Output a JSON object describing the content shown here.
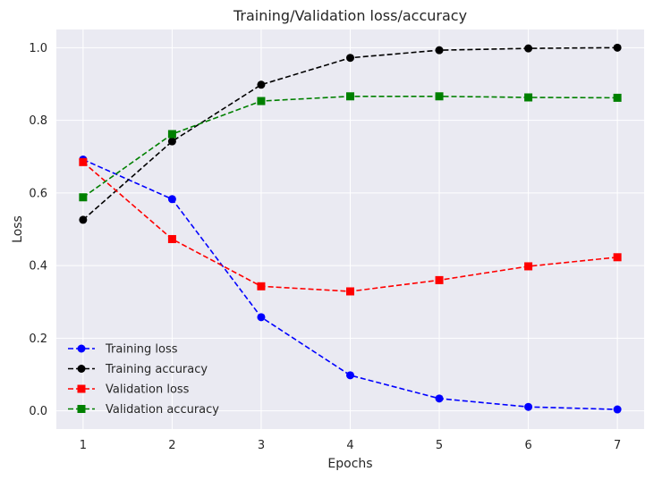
{
  "chart_data": {
    "type": "line",
    "title": "Training/Validation loss/accuracy",
    "xlabel": "Epochs",
    "ylabel": "Loss",
    "x": [
      1,
      2,
      3,
      4,
      5,
      6,
      7
    ],
    "xlim": [
      0.7,
      7.3
    ],
    "ylim": [
      -0.05,
      1.05
    ],
    "xticks": [
      "1",
      "2",
      "3",
      "4",
      "5",
      "6",
      "7"
    ],
    "yticks": [
      "0.0",
      "0.2",
      "0.4",
      "0.6",
      "0.8",
      "1.0"
    ],
    "grid": true,
    "legend_position": "lower-left",
    "series": [
      {
        "name": "Training loss",
        "color": "#0000ff",
        "marker": "circle",
        "values": [
          0.692,
          0.583,
          0.258,
          0.098,
          0.034,
          0.011,
          0.004
        ]
      },
      {
        "name": "Training accuracy",
        "color": "#000000",
        "marker": "circle",
        "values": [
          0.526,
          0.742,
          0.898,
          0.972,
          0.993,
          0.998,
          1.0
        ]
      },
      {
        "name": "Validation loss",
        "color": "#ff0000",
        "marker": "square",
        "values": [
          0.685,
          0.473,
          0.343,
          0.329,
          0.36,
          0.398,
          0.423
        ]
      },
      {
        "name": "Validation accuracy",
        "color": "#008000",
        "marker": "square",
        "values": [
          0.588,
          0.762,
          0.853,
          0.866,
          0.866,
          0.863,
          0.862
        ]
      }
    ]
  }
}
